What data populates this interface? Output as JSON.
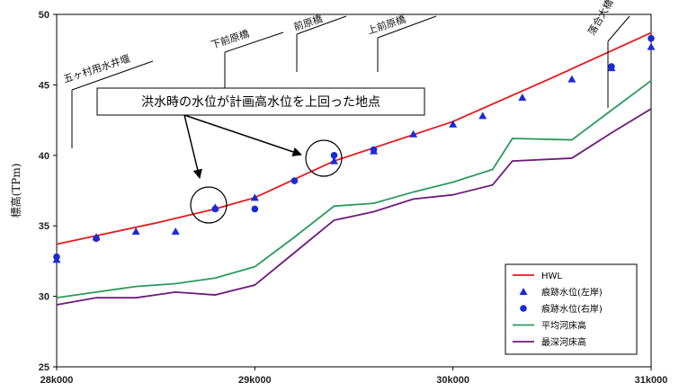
{
  "chart_data": {
    "type": "line",
    "ylabel": "標高(TPm)",
    "ylim": [
      25,
      50
    ],
    "yticks": [
      "25",
      "30",
      "35",
      "40",
      "45",
      "50"
    ],
    "xlim": [
      28000,
      31000
    ],
    "xticks": [
      "28k000",
      "29k000",
      "30k000",
      "31k000"
    ],
    "series": [
      {
        "name": "HWL",
        "kind": "line",
        "color": "#e8191c",
        "x": [
          28000,
          28500,
          28800,
          29000,
          29400,
          30000,
          30500,
          31000
        ],
        "values": [
          33.7,
          35.2,
          36.2,
          37.0,
          39.6,
          42.4,
          45.5,
          48.7
        ]
      },
      {
        "name": "痕跡水位(左岸)",
        "kind": "triangle",
        "color": "#1a2bd6",
        "x": [
          28000,
          28200,
          28400,
          28600,
          28800,
          29000,
          29400,
          29600,
          29800,
          30000,
          30150,
          30350,
          30600,
          30800,
          31000
        ],
        "values": [
          32.6,
          34.2,
          34.6,
          34.6,
          36.3,
          37.0,
          39.6,
          40.3,
          41.5,
          42.2,
          42.8,
          44.1,
          45.4,
          46.2,
          47.7
        ]
      },
      {
        "name": "痕跡水位(右岸)",
        "kind": "circle",
        "color": "#1a2bd6",
        "x": [
          28000,
          28200,
          28800,
          29000,
          29200,
          29400,
          29600,
          30800,
          31000
        ],
        "values": [
          32.8,
          34.1,
          36.2,
          36.2,
          38.2,
          40.0,
          40.4,
          46.3,
          48.3
        ]
      },
      {
        "name": "平均河床高",
        "kind": "line",
        "color": "#2a9a5c",
        "x": [
          28000,
          28200,
          28400,
          28600,
          28800,
          29000,
          29200,
          29400,
          29600,
          29800,
          30000,
          30200,
          30300,
          30600,
          30800,
          31000
        ],
        "values": [
          29.9,
          30.3,
          30.7,
          30.9,
          31.3,
          32.1,
          34.2,
          36.4,
          36.6,
          37.4,
          38.1,
          39.0,
          41.2,
          41.1,
          43.2,
          45.3
        ]
      },
      {
        "name": "最深河床高",
        "kind": "line",
        "color": "#6e1a7c",
        "x": [
          28000,
          28200,
          28400,
          28600,
          28800,
          29000,
          29200,
          29400,
          29600,
          29800,
          30000,
          30200,
          30300,
          30600,
          30800,
          31000
        ],
        "values": [
          29.4,
          29.9,
          29.9,
          30.3,
          30.1,
          30.8,
          33.1,
          35.4,
          36.0,
          36.9,
          37.2,
          37.9,
          39.6,
          39.8,
          41.6,
          43.3
        ]
      }
    ],
    "grid": true,
    "legend": "bottom-right",
    "annotations": {
      "bridges": [
        "五ヶ村用水井堰",
        "下前原橋",
        "前原橋",
        "上前原橋",
        "落合大橋"
      ],
      "callout": "洪水時の水位が計画高水位を上回った地点"
    }
  }
}
